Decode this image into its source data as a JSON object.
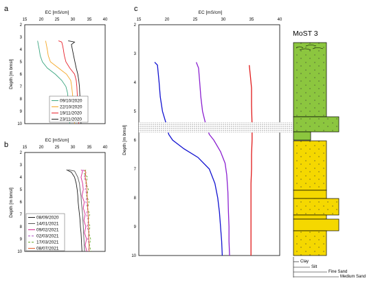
{
  "panels": [
    {
      "label": "a",
      "xlabel": "EC [mS/cm]",
      "ylabel": "Depth [m bmsl]",
      "xticks": [
        "15",
        "20",
        "25",
        "30",
        "35",
        "40"
      ],
      "yticks": [
        "2",
        "3",
        "4",
        "5",
        "6",
        "7",
        "8",
        "9",
        "10"
      ]
    },
    {
      "label": "b",
      "xlabel": "EC [mS/cm]",
      "ylabel": "Depth [m bmsl]",
      "xticks": [
        "15",
        "20",
        "25",
        "30",
        "35",
        "40"
      ],
      "yticks": [
        "2",
        "3",
        "4",
        "5",
        "6",
        "7",
        "8",
        "9",
        "10"
      ]
    },
    {
      "label": "c",
      "xlabel": "EC [mS/cm]",
      "ylabel": "Depth [m bmsl]",
      "xticks": [
        "15",
        "20",
        "25",
        "30",
        "35",
        "40"
      ],
      "yticks": [
        "2",
        "3",
        "4",
        "5",
        "6",
        "7",
        "8",
        "9",
        "10"
      ]
    }
  ],
  "log": {
    "title": "MoST 3",
    "grain_labels": [
      "Clay",
      "Silt",
      "Fine Sand",
      "Medium Sand"
    ],
    "colors": {
      "clay_silt": "#8cc63f",
      "sand": "#f5d800",
      "hatch": "#444444"
    }
  },
  "chart_data": [
    {
      "type": "line",
      "panel": "a",
      "xlim": [
        15,
        40
      ],
      "ylim": [
        2,
        10
      ],
      "y_inverted": true,
      "legend_position": "bottom-right",
      "series": [
        {
          "name": "09/10/2020",
          "color": "#3aa57f",
          "points": [
            [
              19,
              3.3
            ],
            [
              19.2,
              3.6
            ],
            [
              19.5,
              4
            ],
            [
              19.8,
              4.5
            ],
            [
              20.5,
              5
            ],
            [
              22,
              5.5
            ],
            [
              24.5,
              6
            ],
            [
              26.5,
              6.5
            ],
            [
              27.8,
              7
            ],
            [
              28.3,
              7.5
            ],
            [
              28.5,
              8
            ],
            [
              28.7,
              8.5
            ],
            [
              28.8,
              9
            ],
            [
              28.9,
              9.5
            ],
            [
              29,
              10
            ]
          ]
        },
        {
          "name": "22/10/2020",
          "color": "#f5a623",
          "points": [
            [
              21.5,
              3.3
            ],
            [
              21.7,
              3.6
            ],
            [
              22,
              4
            ],
            [
              22.3,
              4.5
            ],
            [
              23,
              5
            ],
            [
              25.5,
              5.5
            ],
            [
              28,
              6
            ],
            [
              29.3,
              6.5
            ],
            [
              29.6,
              7
            ],
            [
              29.8,
              7.5
            ],
            [
              30,
              8
            ],
            [
              30.2,
              8.5
            ],
            [
              30.3,
              9
            ],
            [
              30.4,
              9.5
            ],
            [
              30.5,
              10
            ]
          ]
        },
        {
          "name": "19/11/2020",
          "color": "#e8202a",
          "points": [
            [
              25.5,
              3.3
            ],
            [
              26.5,
              3.4
            ],
            [
              26.8,
              3.7
            ],
            [
              27,
              4
            ],
            [
              27.3,
              4.5
            ],
            [
              27.8,
              5
            ],
            [
              29,
              5.5
            ],
            [
              30.5,
              6
            ],
            [
              31,
              6.5
            ],
            [
              31.2,
              7
            ],
            [
              31.3,
              7.5
            ],
            [
              31.4,
              8
            ],
            [
              31.5,
              8.5
            ],
            [
              31.6,
              9
            ],
            [
              31.7,
              9.5
            ],
            [
              31.8,
              10
            ]
          ]
        },
        {
          "name": "23/11/2020",
          "color": "#1a1a1a",
          "points": [
            [
              28.5,
              3.3
            ],
            [
              30.5,
              3.4
            ],
            [
              29.5,
              3.6
            ],
            [
              29.8,
              4
            ],
            [
              30.2,
              4.5
            ],
            [
              30.6,
              5
            ],
            [
              31,
              5.5
            ],
            [
              31.5,
              6
            ],
            [
              31.8,
              6.5
            ],
            [
              32,
              7
            ],
            [
              32.1,
              7.5
            ],
            [
              32.2,
              8
            ],
            [
              32.3,
              8.5
            ],
            [
              32.3,
              9
            ],
            [
              32.4,
              9.5
            ],
            [
              32.5,
              10
            ]
          ]
        }
      ]
    },
    {
      "type": "line",
      "panel": "b",
      "xlim": [
        15,
        40
      ],
      "ylim": [
        2,
        10
      ],
      "y_inverted": true,
      "legend_position": "bottom-left",
      "series": [
        {
          "name": "08/09/2020",
          "color": "#1a1a1a",
          "dash": "",
          "points": [
            [
              28,
              3.4
            ],
            [
              29.5,
              3.6
            ],
            [
              30.5,
              4
            ],
            [
              31,
              4.5
            ],
            [
              31.3,
              5
            ],
            [
              31.5,
              5.5
            ],
            [
              31.6,
              6
            ],
            [
              31.8,
              6.5
            ],
            [
              32,
              7
            ],
            [
              32.2,
              7.5
            ],
            [
              32.3,
              8
            ],
            [
              32.5,
              8.5
            ],
            [
              32.6,
              9
            ],
            [
              32.7,
              9.5
            ],
            [
              32.8,
              10
            ]
          ]
        },
        {
          "name": "14/01/2021",
          "color": "#555555",
          "dash": "",
          "points": [
            [
              28.5,
              3.4
            ],
            [
              30.5,
              3.5
            ],
            [
              31.5,
              4
            ],
            [
              32,
              4.5
            ],
            [
              32.2,
              5
            ],
            [
              32.5,
              5.5
            ],
            [
              32.6,
              6
            ],
            [
              32.8,
              6.5
            ],
            [
              33,
              7
            ],
            [
              33.1,
              7.5
            ],
            [
              33.2,
              8
            ],
            [
              33.3,
              8.5
            ],
            [
              33.4,
              9
            ],
            [
              33.5,
              9.5
            ],
            [
              33.6,
              10
            ]
          ]
        },
        {
          "name": "09/02/2021",
          "color": "#d6248f",
          "dash": "",
          "points": [
            [
              32.5,
              3.4
            ],
            [
              33,
              3.5
            ],
            [
              32.5,
              4
            ],
            [
              33,
              4.5
            ],
            [
              33.2,
              5
            ],
            [
              32.8,
              5.5
            ],
            [
              33.5,
              6
            ],
            [
              33.2,
              6.5
            ],
            [
              33.8,
              7
            ],
            [
              33.4,
              7.5
            ],
            [
              34,
              8
            ],
            [
              33.6,
              8.5
            ],
            [
              34.2,
              9
            ],
            [
              33.8,
              9.5
            ],
            [
              34.3,
              10
            ]
          ]
        },
        {
          "name": "02/03/2021",
          "color": "#b04fc2",
          "dash": "3,2",
          "points": [
            [
              33,
              3.4
            ],
            [
              34,
              3.6
            ],
            [
              33.5,
              4
            ],
            [
              34.2,
              4.5
            ],
            [
              33.8,
              5
            ],
            [
              34.4,
              5.5
            ],
            [
              34,
              6
            ],
            [
              34.6,
              6.5
            ],
            [
              34.2,
              7
            ],
            [
              34.8,
              7.5
            ],
            [
              34.4,
              8
            ],
            [
              35,
              8.5
            ],
            [
              34.6,
              9
            ],
            [
              35.1,
              9.5
            ],
            [
              34.8,
              10
            ]
          ]
        },
        {
          "name": "17/03/2021",
          "color": "#6aa82c",
          "dash": "3,2",
          "points": [
            [
              34,
              3.4
            ],
            [
              33.5,
              3.7
            ],
            [
              34.5,
              4
            ],
            [
              34,
              4.5
            ],
            [
              34.8,
              5
            ],
            [
              34.2,
              5.5
            ],
            [
              35,
              6
            ],
            [
              34.5,
              6.5
            ],
            [
              35.2,
              7
            ],
            [
              34.7,
              7.5
            ],
            [
              35.3,
              8
            ],
            [
              34.9,
              8.5
            ],
            [
              35.5,
              9
            ],
            [
              35.1,
              9.5
            ],
            [
              35.6,
              10
            ]
          ]
        },
        {
          "name": "08/07/2021",
          "color": "#e05a2a",
          "dash": "",
          "points": [
            [
              33.5,
              3.4
            ],
            [
              34,
              3.6
            ],
            [
              33.8,
              4
            ],
            [
              34.2,
              4.5
            ],
            [
              34.3,
              5
            ],
            [
              34.4,
              5.5
            ],
            [
              34.5,
              6
            ],
            [
              34.6,
              6.5
            ],
            [
              34.7,
              7
            ],
            [
              34.8,
              7.5
            ],
            [
              34.8,
              8
            ],
            [
              34.9,
              8.5
            ],
            [
              34.9,
              9
            ],
            [
              35,
              9.5
            ],
            [
              35,
              10
            ]
          ]
        }
      ]
    },
    {
      "type": "line",
      "panel": "c",
      "xlim": [
        15,
        40
      ],
      "ylim": [
        2,
        10
      ],
      "y_inverted": true,
      "annotation": "stippled band between 5.5 and 5.8 m",
      "series": [
        {
          "color": "#1010d0",
          "points": [
            [
              17.8,
              3.3
            ],
            [
              18.3,
              3.4
            ],
            [
              18.6,
              4
            ],
            [
              18.8,
              4.5
            ],
            [
              19.2,
              5
            ],
            [
              19.8,
              5.4
            ],
            [
              20.3,
              5.8
            ],
            [
              21,
              6
            ],
            [
              23,
              6.3
            ],
            [
              25.5,
              6.6
            ],
            [
              27.5,
              7
            ],
            [
              28.5,
              7.5
            ],
            [
              29,
              8
            ],
            [
              29.3,
              8.5
            ],
            [
              29.5,
              9
            ],
            [
              29.7,
              9.5
            ],
            [
              29.8,
              10
            ]
          ]
        },
        {
          "color": "#8a1fd0",
          "points": [
            [
              25.2,
              3.3
            ],
            [
              25.6,
              3.5
            ],
            [
              25.8,
              4
            ],
            [
              26,
              4.5
            ],
            [
              26.3,
              5
            ],
            [
              26.8,
              5.4
            ],
            [
              27.5,
              5.8
            ],
            [
              28.3,
              6
            ],
            [
              29.5,
              6.4
            ],
            [
              30.3,
              6.8
            ],
            [
              30.6,
              7.2
            ],
            [
              30.8,
              7.8
            ],
            [
              30.9,
              8.5
            ],
            [
              31,
              9
            ],
            [
              31,
              9.5
            ],
            [
              31.1,
              10
            ]
          ]
        },
        {
          "color": "#e01818",
          "points": [
            [
              34.6,
              3.4
            ],
            [
              34.8,
              3.8
            ],
            [
              35,
              4.2
            ],
            [
              35,
              4.8
            ],
            [
              35.1,
              5.5
            ],
            [
              35.1,
              6
            ],
            [
              35,
              6.5
            ],
            [
              35,
              7
            ],
            [
              34.9,
              7.5
            ],
            [
              34.9,
              8
            ],
            [
              34.9,
              8.5
            ],
            [
              34.9,
              9
            ],
            [
              34.9,
              9.5
            ],
            [
              34.9,
              10
            ]
          ]
        }
      ]
    }
  ]
}
